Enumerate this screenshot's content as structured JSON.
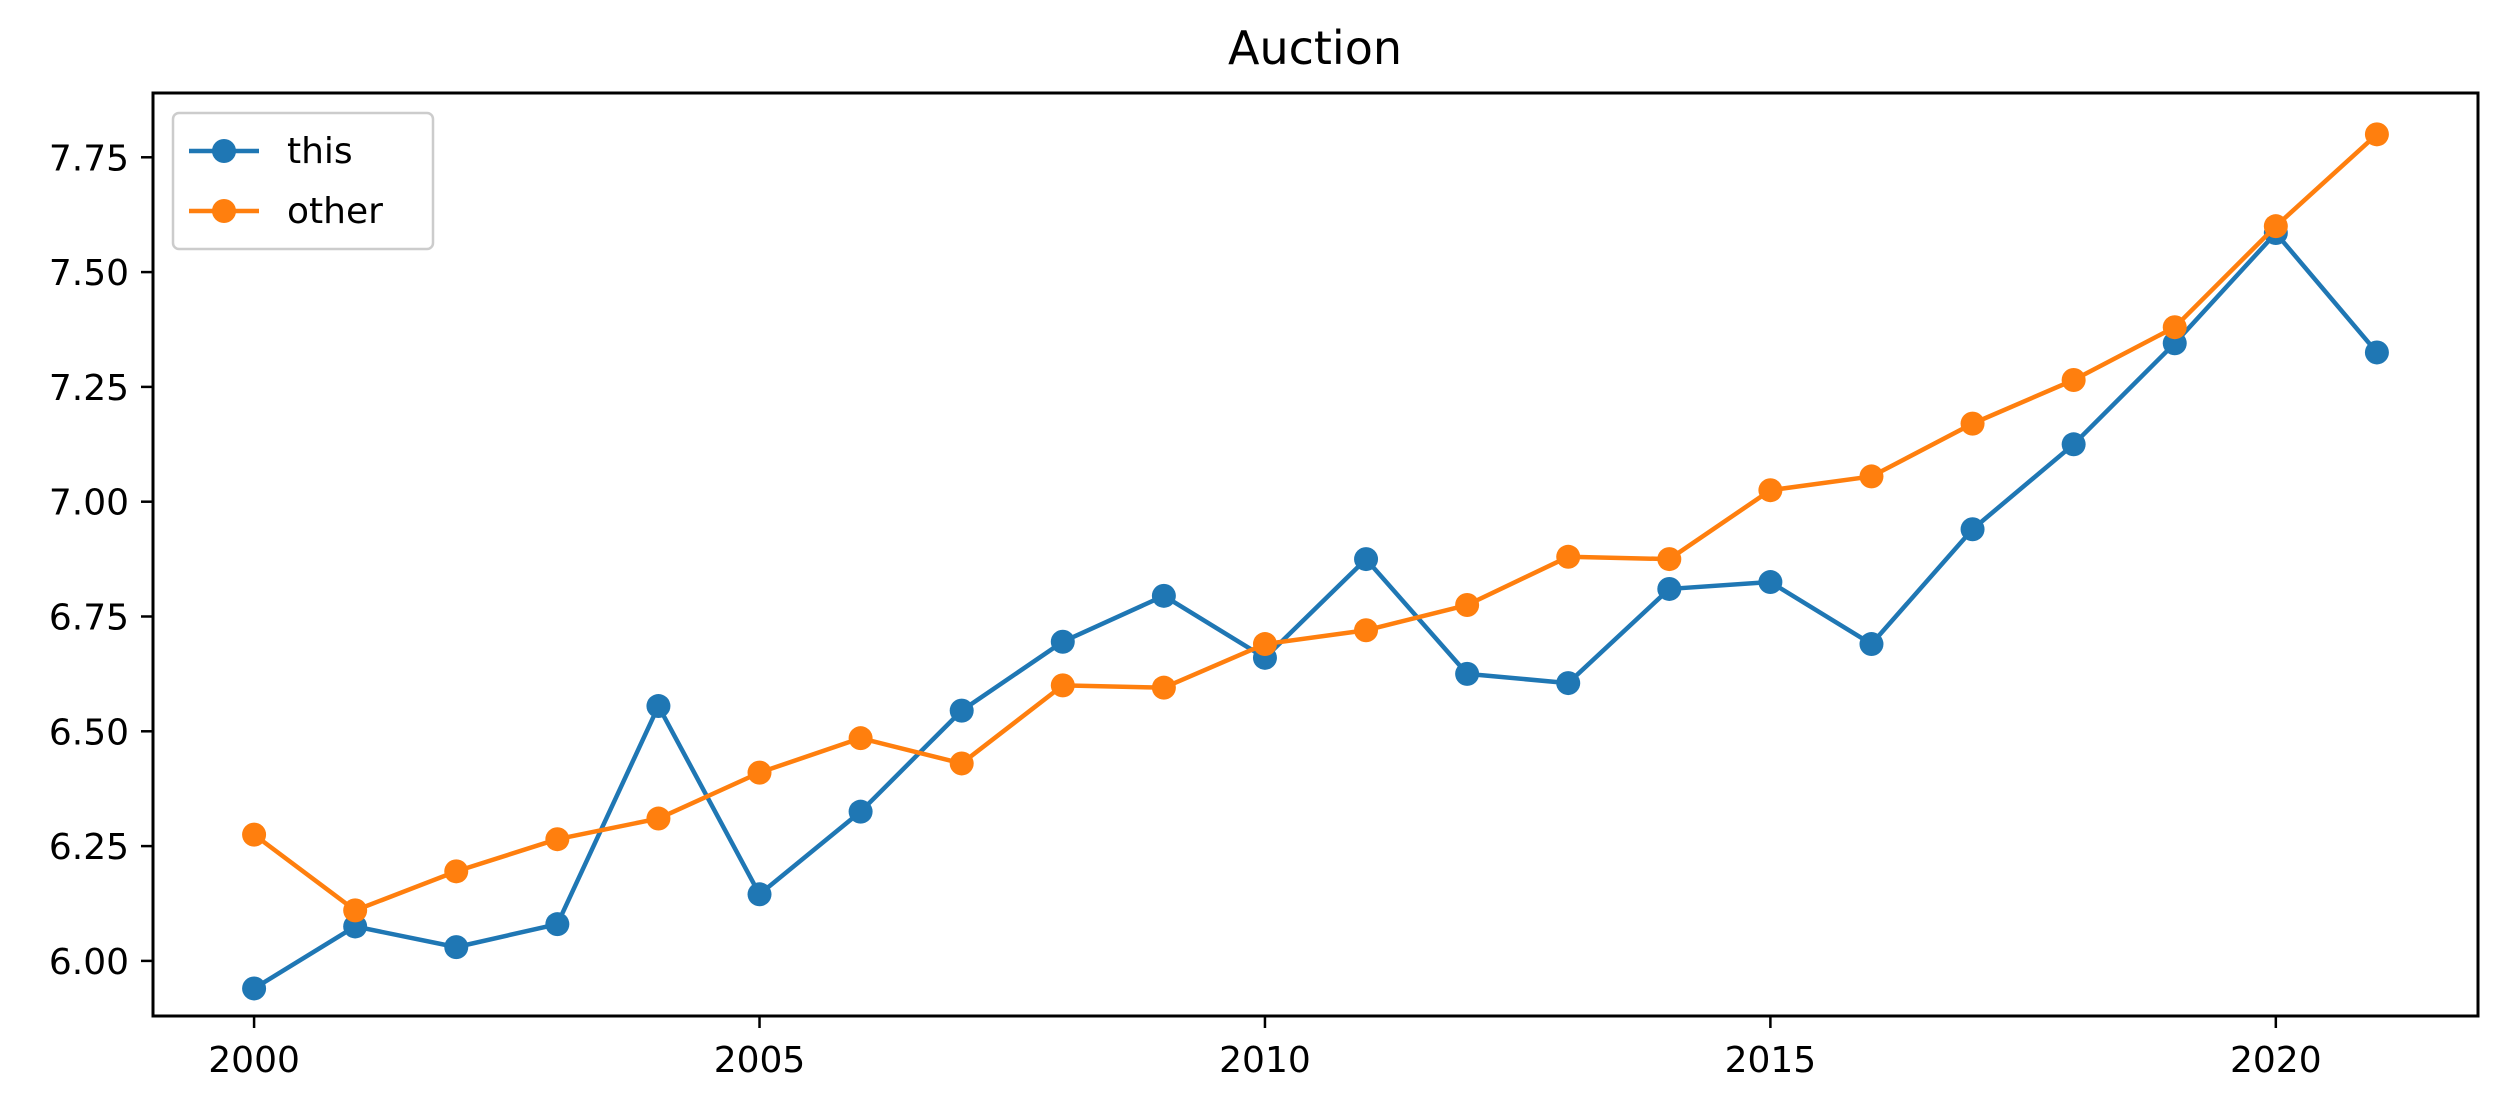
{
  "chart_data": {
    "type": "line",
    "title": "Auction",
    "xlabel": "",
    "ylabel": "",
    "x": [
      2000,
      2001,
      2002,
      2003,
      2004,
      2005,
      2006,
      2007,
      2008,
      2009,
      2010,
      2011,
      2012,
      2013,
      2014,
      2015,
      2016,
      2017,
      2018,
      2019,
      2020,
      2021
    ],
    "series": [
      {
        "name": "this",
        "color": "#1f77b4",
        "values": [
          5.94,
          6.075,
          6.03,
          6.08,
          6.555,
          6.145,
          6.325,
          6.545,
          6.695,
          6.795,
          6.66,
          6.875,
          6.625,
          6.605,
          6.81,
          6.825,
          6.69,
          6.94,
          7.125,
          7.345,
          7.585,
          7.325
        ]
      },
      {
        "name": "other",
        "color": "#ff7f0e",
        "values": [
          6.275,
          6.11,
          6.195,
          6.265,
          6.31,
          6.41,
          6.485,
          6.43,
          6.6,
          6.595,
          6.69,
          6.72,
          6.775,
          6.88,
          6.875,
          7.025,
          7.055,
          7.17,
          7.265,
          7.38,
          7.6,
          7.8
        ]
      }
    ],
    "xlim": [
      1999,
      2022
    ],
    "ylim": [
      5.88,
      7.89
    ],
    "xticks": [
      2000,
      2005,
      2010,
      2015,
      2020
    ],
    "yticks": [
      "6.00",
      "6.25",
      "6.50",
      "6.75",
      "7.00",
      "7.25",
      "7.50",
      "7.75"
    ],
    "grid": false,
    "legend_position": "upper-left"
  }
}
